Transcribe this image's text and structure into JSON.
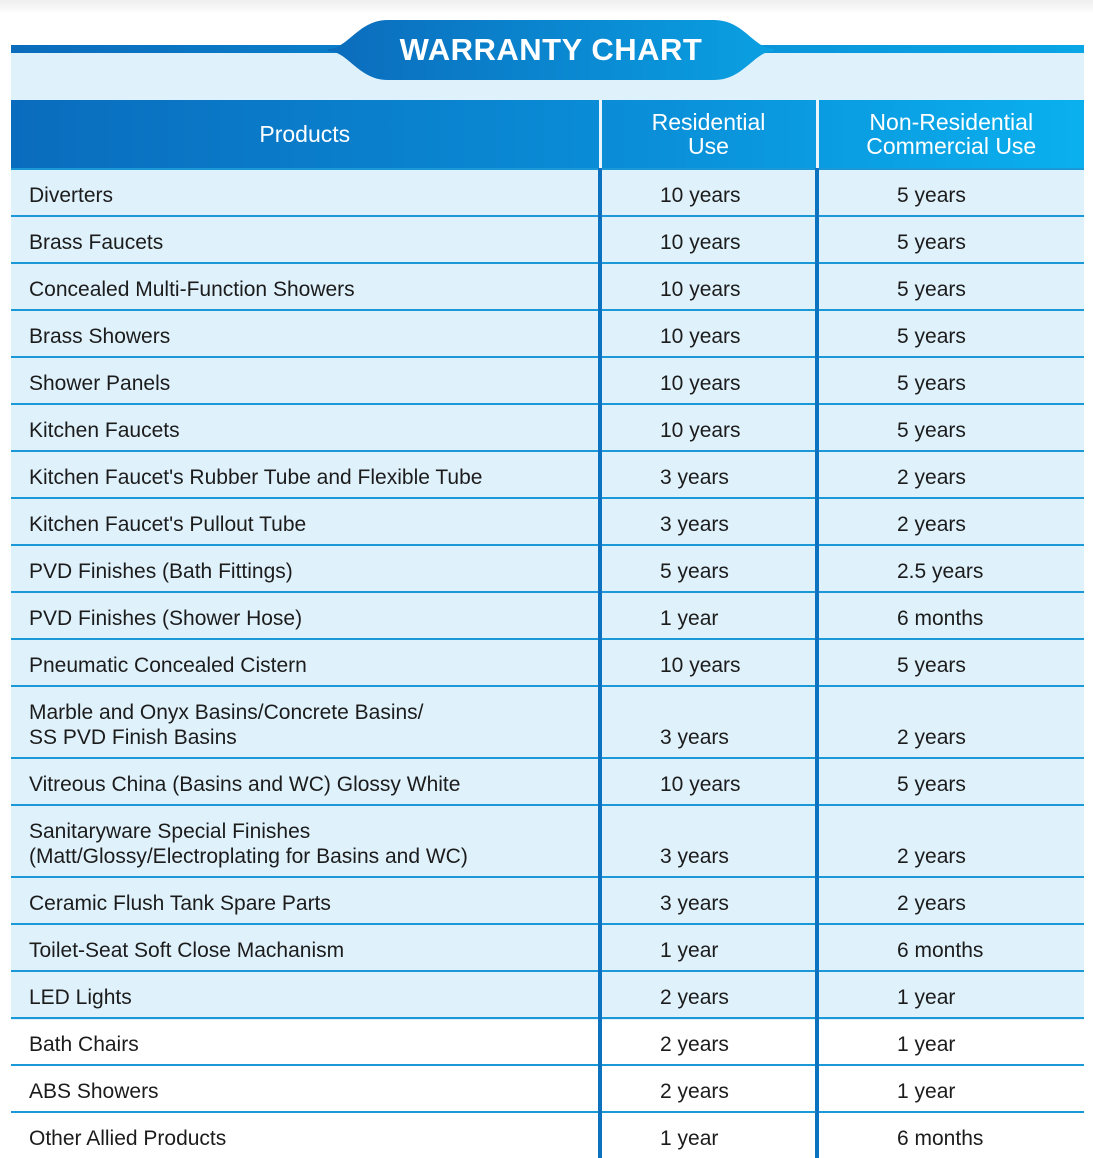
{
  "title": "WARRANTY CHART",
  "colors": {
    "accent_dark": "#0b6cbc",
    "accent_light": "#0aa6e6",
    "row_bg": "#dff1fb"
  },
  "headers": {
    "products": "Products",
    "residential": [
      "Residential",
      "Use"
    ],
    "commercial": [
      "Non-Residential",
      "Commercial Use"
    ]
  },
  "rows": [
    {
      "product": [
        "Diverters"
      ],
      "residential": "10 years",
      "commercial": "5 years"
    },
    {
      "product": [
        "Brass Faucets"
      ],
      "residential": "10 years",
      "commercial": "5 years"
    },
    {
      "product": [
        "Concealed Multi-Function Showers"
      ],
      "residential": "10 years",
      "commercial": "5 years"
    },
    {
      "product": [
        "Brass Showers"
      ],
      "residential": "10 years",
      "commercial": "5 years"
    },
    {
      "product": [
        "Shower Panels"
      ],
      "residential": "10 years",
      "commercial": "5 years"
    },
    {
      "product": [
        "Kitchen Faucets"
      ],
      "residential": "10 years",
      "commercial": "5 years"
    },
    {
      "product": [
        "Kitchen Faucet's Rubber Tube and Flexible Tube"
      ],
      "residential": "3 years",
      "commercial": "2 years"
    },
    {
      "product": [
        "Kitchen Faucet's Pullout Tube"
      ],
      "residential": "3 years",
      "commercial": "2 years"
    },
    {
      "product": [
        "PVD Finishes (Bath Fittings)"
      ],
      "residential": "5 years",
      "commercial": "2.5 years"
    },
    {
      "product": [
        "PVD Finishes (Shower Hose)"
      ],
      "residential": "1 year",
      "commercial": "6 months"
    },
    {
      "product": [
        "Pneumatic Concealed Cistern"
      ],
      "residential": "10 years",
      "commercial": "5 years"
    },
    {
      "product": [
        "Marble and Onyx Basins/Concrete Basins/",
        "SS PVD Finish Basins"
      ],
      "residential": "3 years",
      "commercial": "2 years"
    },
    {
      "product": [
        "Vitreous China (Basins and WC) Glossy White"
      ],
      "residential": "10 years",
      "commercial": "5 years"
    },
    {
      "product": [
        "Sanitaryware Special Finishes",
        "(Matt/Glossy/Electroplating for Basins and WC)"
      ],
      "residential": "3 years",
      "commercial": "2 years"
    },
    {
      "product": [
        "Ceramic Flush Tank Spare Parts"
      ],
      "residential": "3 years",
      "commercial": "2 years"
    },
    {
      "product": [
        "Toilet-Seat Soft Close Machanism"
      ],
      "residential": "1 year",
      "commercial": "6 months"
    },
    {
      "product": [
        "LED Lights"
      ],
      "residential": "2 years",
      "commercial": "1 year"
    },
    {
      "product": [
        "Bath Chairs"
      ],
      "residential": "2 years",
      "commercial": "1 year"
    },
    {
      "product": [
        "ABS Showers"
      ],
      "residential": "2 years",
      "commercial": "1 year"
    },
    {
      "product": [
        "Other Allied Products"
      ],
      "residential": "1 year",
      "commercial": "6 months"
    }
  ]
}
